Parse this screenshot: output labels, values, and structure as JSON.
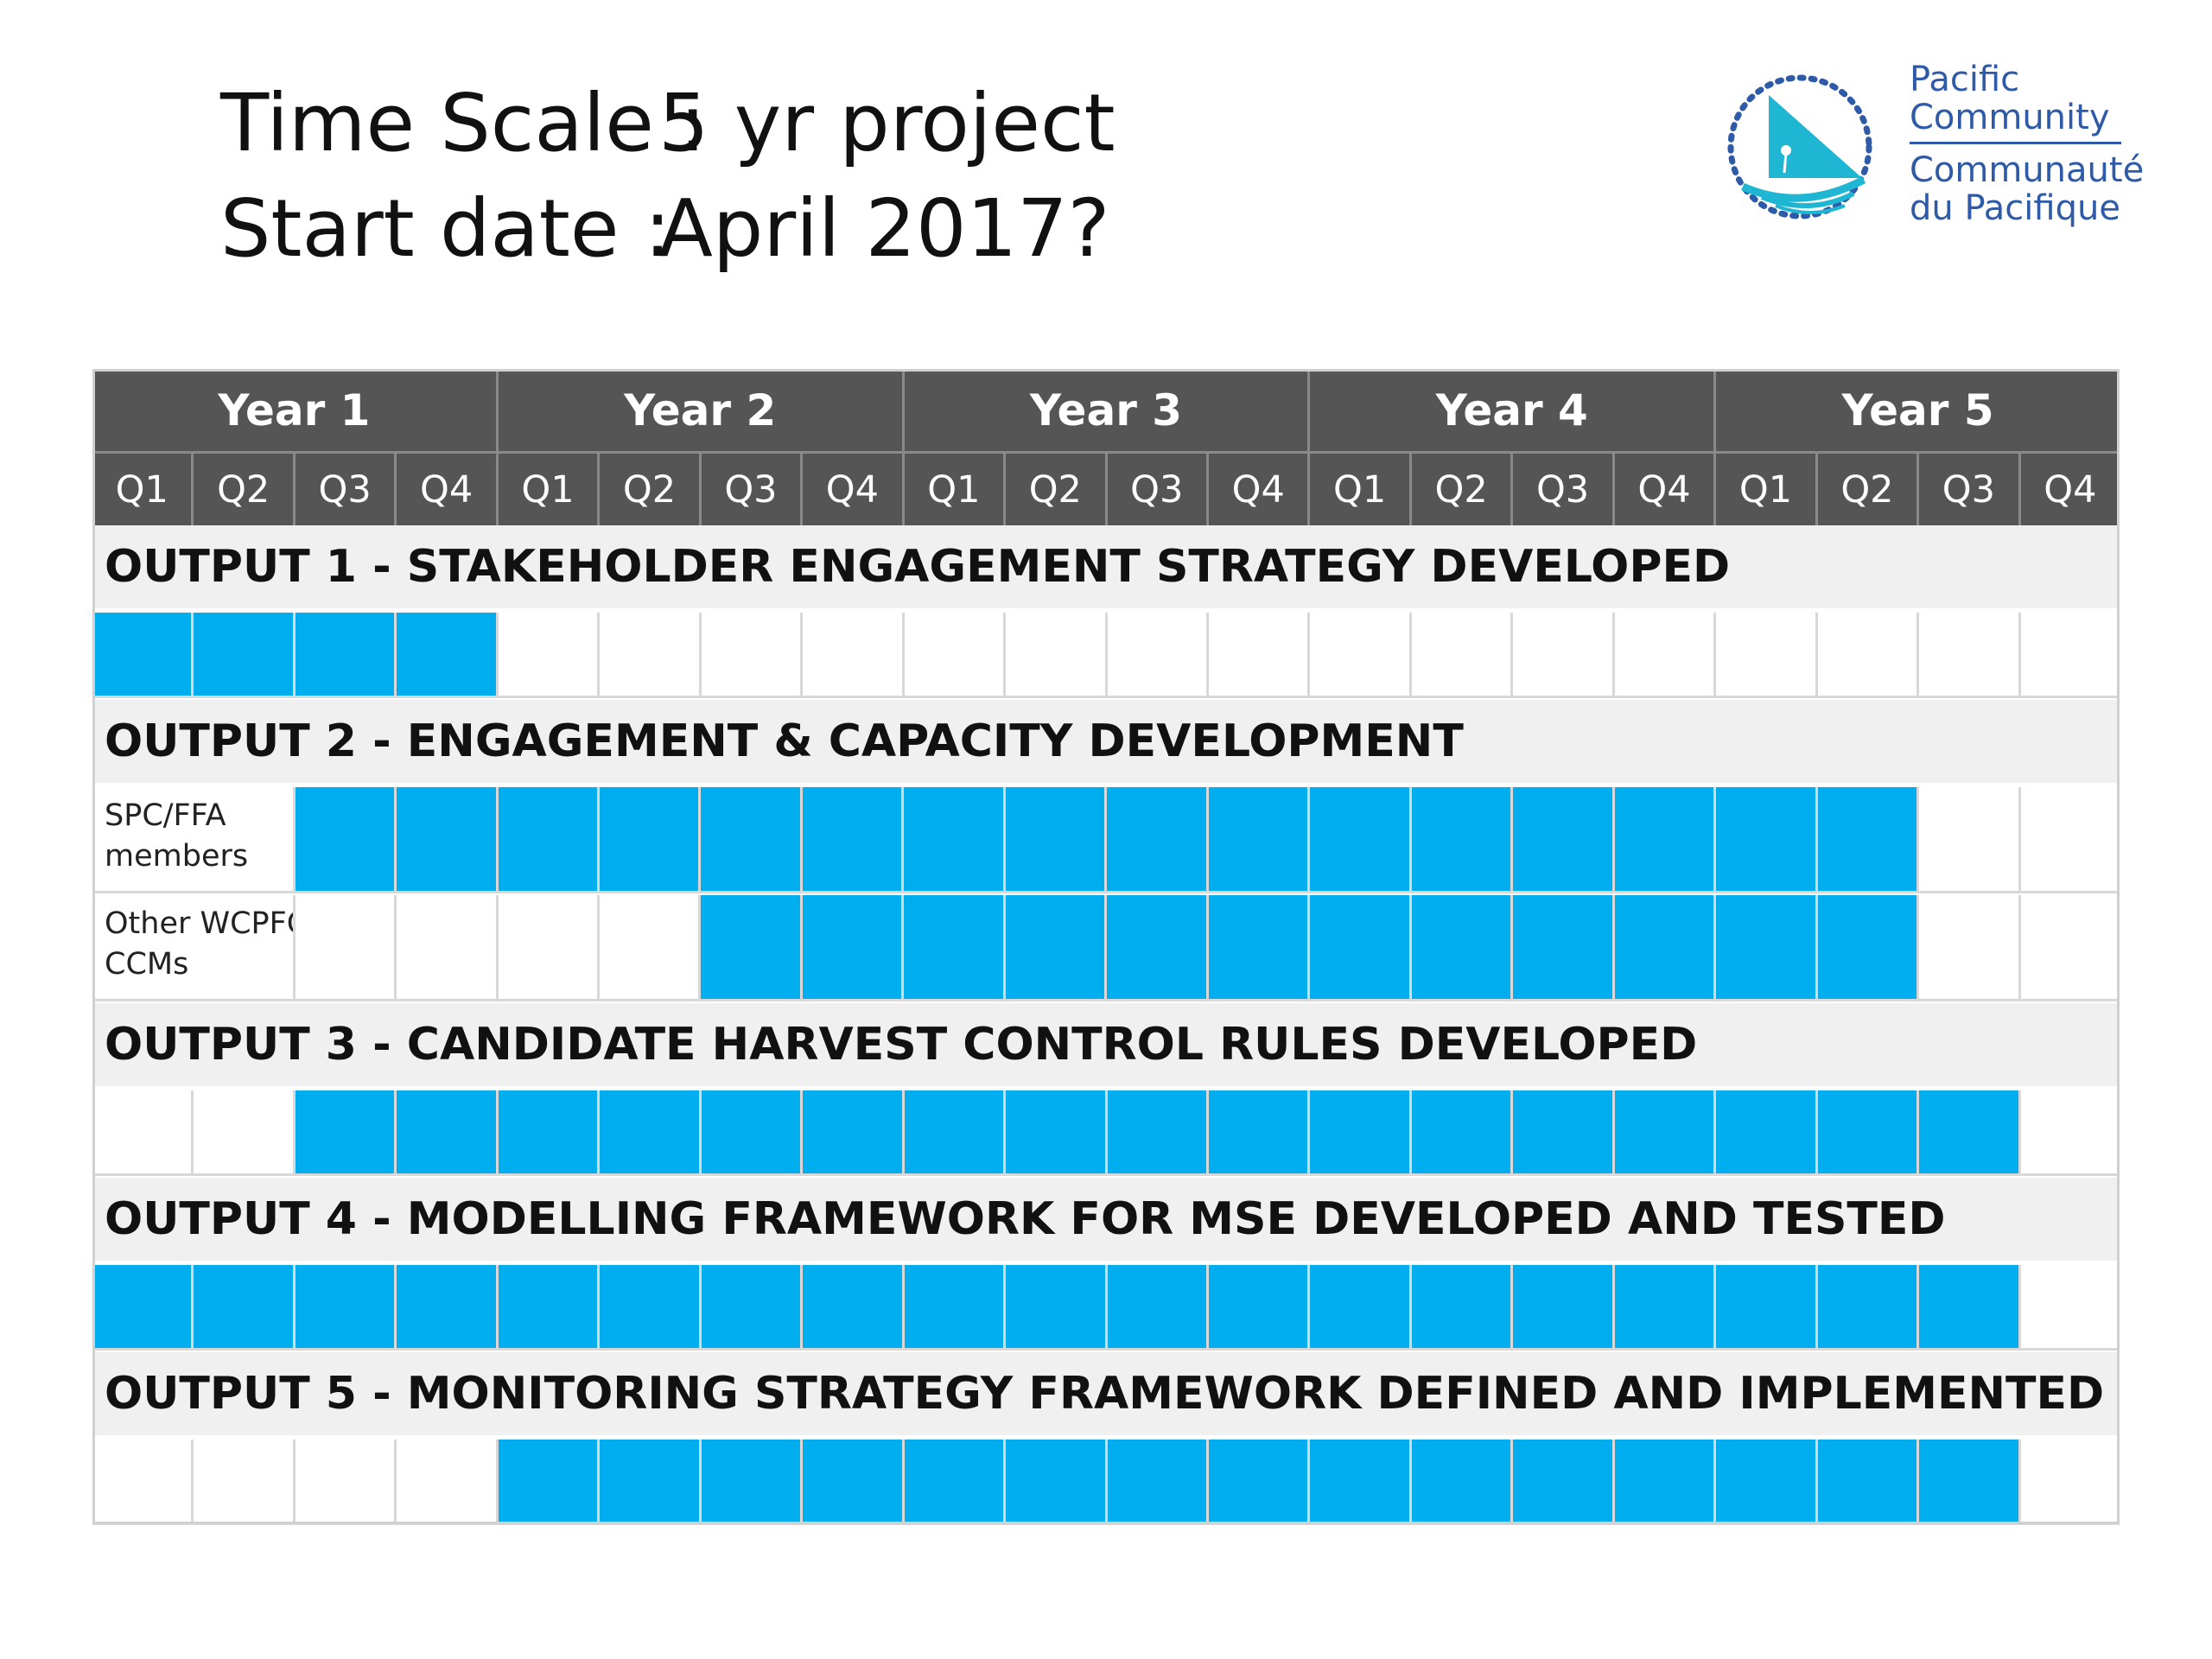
{
  "header": {
    "time_scale_label": "Time Scale :",
    "time_scale_value": "5 yr project",
    "start_date_label": "Start date :",
    "start_date_value": "April 2017?"
  },
  "logo": {
    "line1": "Pacific",
    "line2": "Community",
    "line3": "Communauté",
    "line4": "du Pacifique",
    "color": "#2e5aa8"
  },
  "colors": {
    "header_bg": "#555555",
    "bar": "#00adef",
    "output_bg": "#f0f0f0"
  },
  "years": [
    "Year 1",
    "Year 2",
    "Year 3",
    "Year 4",
    "Year 5"
  ],
  "quarters": [
    "Q1",
    "Q2",
    "Q3",
    "Q4"
  ],
  "outputs": [
    {
      "title": "OUTPUT 1 - STAKEHOLDER ENGAGEMENT STRATEGY DEVELOPED",
      "rows": [
        {
          "label": "",
          "active": [
            1,
            1,
            1,
            1,
            0,
            0,
            0,
            0,
            0,
            0,
            0,
            0,
            0,
            0,
            0,
            0,
            0,
            0,
            0,
            0
          ]
        }
      ]
    },
    {
      "title": "OUTPUT 2 - ENGAGEMENT & CAPACITY DEVELOPMENT",
      "rows": [
        {
          "label": "SPC/FFA\nmembers",
          "active": [
            0,
            0,
            1,
            1,
            1,
            1,
            1,
            1,
            1,
            1,
            1,
            1,
            1,
            1,
            1,
            1,
            1,
            1,
            0,
            0
          ]
        },
        {
          "label": "Other WCPFC\nCCMs",
          "active": [
            0,
            0,
            0,
            0,
            0,
            0,
            1,
            1,
            1,
            1,
            1,
            1,
            1,
            1,
            1,
            1,
            1,
            1,
            0,
            0
          ]
        }
      ]
    },
    {
      "title": "OUTPUT 3 - CANDIDATE HARVEST CONTROL RULES DEVELOPED",
      "rows": [
        {
          "label": "",
          "active": [
            0,
            0,
            1,
            1,
            1,
            1,
            1,
            1,
            1,
            1,
            1,
            1,
            1,
            1,
            1,
            1,
            1,
            1,
            1,
            0
          ]
        }
      ]
    },
    {
      "title": "OUTPUT 4 - MODELLING FRAMEWORK FOR MSE DEVELOPED AND TESTED",
      "rows": [
        {
          "label": "",
          "active": [
            1,
            1,
            1,
            1,
            1,
            1,
            1,
            1,
            1,
            1,
            1,
            1,
            1,
            1,
            1,
            1,
            1,
            1,
            1,
            0
          ]
        }
      ]
    },
    {
      "title": "OUTPUT 5 - MONITORING STRATEGY FRAMEWORK DEFINED AND IMPLEMENTED",
      "rows": [
        {
          "label": "",
          "active": [
            0,
            0,
            0,
            0,
            1,
            1,
            1,
            1,
            1,
            1,
            1,
            1,
            1,
            1,
            1,
            1,
            1,
            1,
            1,
            0
          ]
        }
      ]
    }
  ]
}
